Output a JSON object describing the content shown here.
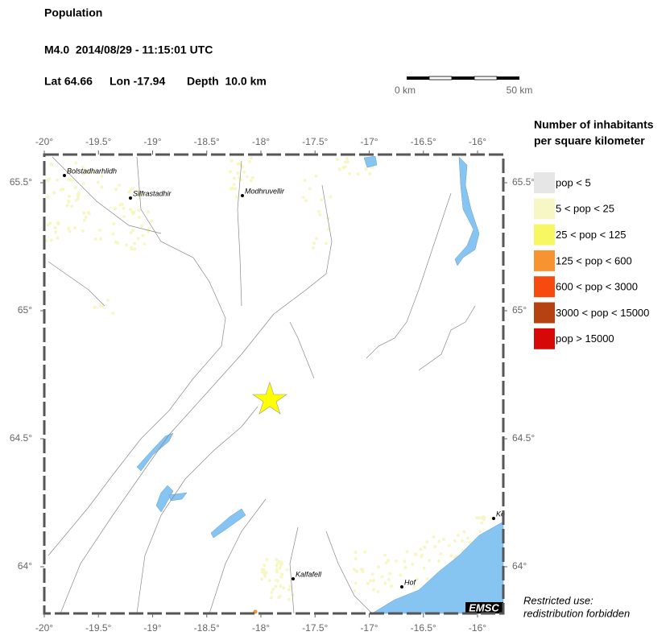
{
  "header": {
    "title": "Population",
    "event": "M4.0  2014/08/29 - 11:15:01 UTC",
    "lat": "Lat 64.66",
    "lon": "Lon -17.94",
    "depth": "Depth  10.0 km"
  },
  "scale_bar": {
    "start": "0 km",
    "end": "50 km"
  },
  "map": {
    "lon_ticks": [
      "-20°",
      "-19.5°",
      "-19°",
      "-18.5°",
      "-18°",
      "-17.5°",
      "-17°",
      "-16.5°",
      "-16°"
    ],
    "lat_ticks": [
      "65.5°",
      "65°",
      "64.5°",
      "64°"
    ],
    "places": [
      {
        "name": "Bolstadharhlidh"
      },
      {
        "name": "Silfrastadhir"
      },
      {
        "name": "Modhruvellir"
      },
      {
        "name": "Kalfafell"
      },
      {
        "name": "Hof"
      },
      {
        "name": "Ke"
      }
    ],
    "credit": "EMSC",
    "notice": [
      "Restricted use:",
      "redistribution forbidden"
    ]
  },
  "legend": {
    "title": [
      "Number of inhabitants",
      "per square kilometer"
    ],
    "items": [
      {
        "label": "pop < 5",
        "color": "#e6e6e6"
      },
      {
        "label": "5 < pop < 25",
        "color": "#f7f7c6"
      },
      {
        "label": "25 < pop < 125",
        "color": "#f7f763"
      },
      {
        "label": "125 < pop < 600",
        "color": "#f79431"
      },
      {
        "label": "600 < pop < 3000",
        "color": "#f74a10"
      },
      {
        "label": "3000 < pop < 15000",
        "color": "#b54210"
      },
      {
        "label": "pop > 15000",
        "color": "#d60808"
      }
    ]
  }
}
